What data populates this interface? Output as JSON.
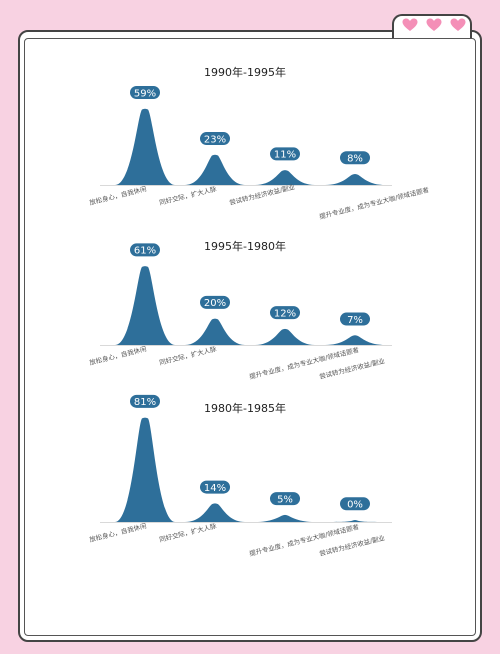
{
  "colors": {
    "peak": "#2e6f9a",
    "badge": "#2e6f9a",
    "heart": "#f48fb7",
    "text": "#222222",
    "baseline": "#cccccc"
  },
  "icons": [
    "heart-icon",
    "heart-icon",
    "heart-icon"
  ],
  "chart_data": [
    {
      "type": "area",
      "title": "1990年-1995年",
      "categories": [
        "放松身心，自我休闲",
        "同好交际，扩大人脉",
        "尝试转为经济收益/副业",
        "提升专业度，成为专业大咖/领域话题者"
      ],
      "values": [
        59,
        23,
        11,
        8
      ],
      "value_labels": [
        "59%",
        "23%",
        "11%",
        "8%"
      ],
      "label_rows": [
        0,
        0,
        0,
        1
      ],
      "ylim": [
        0,
        100
      ]
    },
    {
      "type": "area",
      "title": "1995年-1980年",
      "categories": [
        "放松身心，自我休闲",
        "同好交际，扩大人脉",
        "提升专业度，成为专业大咖/领域话题者",
        "尝试转为经济收益/副业"
      ],
      "values": [
        61,
        20,
        12,
        7
      ],
      "value_labels": [
        "61%",
        "20%",
        "12%",
        "7%"
      ],
      "label_rows": [
        0,
        0,
        1,
        1
      ],
      "ylim": [
        0,
        100
      ]
    },
    {
      "type": "area",
      "title": "1980年-1985年",
      "categories": [
        "放松身心，自我休闲",
        "同好交际，扩大人脉",
        "提升专业度，成为专业大咖/领域话题者",
        "尝试转为经济收益/副业"
      ],
      "values": [
        81,
        14,
        5,
        0
      ],
      "value_labels": [
        "81%",
        "14%",
        "5%",
        "0%"
      ],
      "label_rows": [
        0,
        0,
        1,
        1
      ],
      "ylim": [
        0,
        100
      ]
    }
  ]
}
